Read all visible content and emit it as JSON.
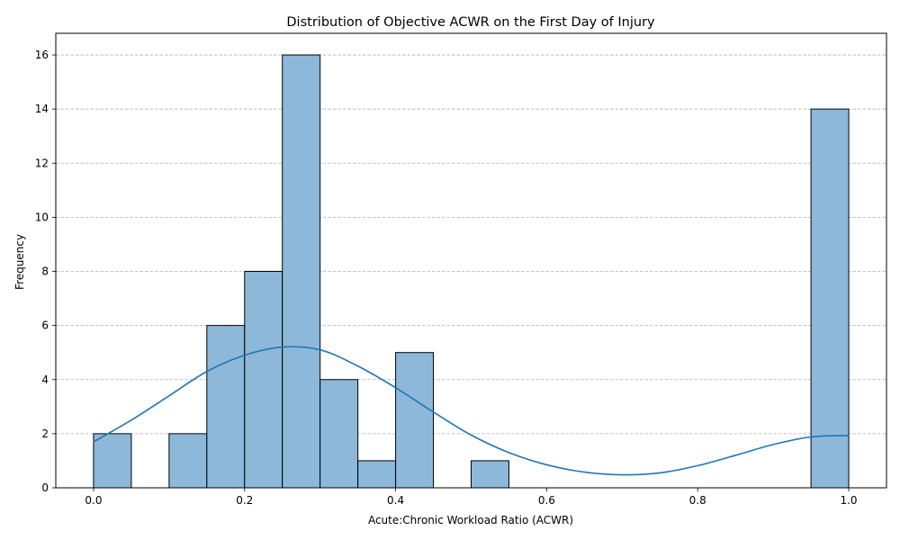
{
  "chart_data": {
    "type": "bar",
    "title": "Distribution of Objective ACWR on the First Day of Injury",
    "xlabel": "Acute:Chronic Workload Ratio (ACWR)",
    "ylabel": "Frequency",
    "xlim": [
      -0.05,
      1.05
    ],
    "ylim": [
      0,
      16.8
    ],
    "xticks": [
      0.0,
      0.2,
      0.4,
      0.6,
      0.8,
      1.0
    ],
    "xtick_labels": [
      "0.0",
      "0.2",
      "0.4",
      "0.6",
      "0.8",
      "1.0"
    ],
    "yticks": [
      0,
      2,
      4,
      6,
      8,
      10,
      12,
      14,
      16
    ],
    "ytick_labels": [
      "0",
      "2",
      "4",
      "6",
      "8",
      "10",
      "12",
      "14",
      "16"
    ],
    "grid": "y-dashed",
    "bins": [
      {
        "x0": 0.0,
        "x1": 0.05,
        "count": 2
      },
      {
        "x0": 0.05,
        "x1": 0.1,
        "count": 0
      },
      {
        "x0": 0.1,
        "x1": 0.15,
        "count": 2
      },
      {
        "x0": 0.15,
        "x1": 0.2,
        "count": 6
      },
      {
        "x0": 0.2,
        "x1": 0.25,
        "count": 8
      },
      {
        "x0": 0.25,
        "x1": 0.3,
        "count": 16
      },
      {
        "x0": 0.3,
        "x1": 0.35,
        "count": 4
      },
      {
        "x0": 0.35,
        "x1": 0.4,
        "count": 1
      },
      {
        "x0": 0.4,
        "x1": 0.45,
        "count": 5
      },
      {
        "x0": 0.45,
        "x1": 0.5,
        "count": 0
      },
      {
        "x0": 0.5,
        "x1": 0.55,
        "count": 1
      },
      {
        "x0": 0.55,
        "x1": 0.6,
        "count": 0
      },
      {
        "x0": 0.6,
        "x1": 0.65,
        "count": 0
      },
      {
        "x0": 0.65,
        "x1": 0.7,
        "count": 0
      },
      {
        "x0": 0.7,
        "x1": 0.75,
        "count": 0
      },
      {
        "x0": 0.75,
        "x1": 0.8,
        "count": 0
      },
      {
        "x0": 0.8,
        "x1": 0.85,
        "count": 0
      },
      {
        "x0": 0.85,
        "x1": 0.9,
        "count": 0
      },
      {
        "x0": 0.9,
        "x1": 0.95,
        "count": 0
      },
      {
        "x0": 0.95,
        "x1": 1.0,
        "count": 14
      }
    ],
    "kde": {
      "x": [
        0.0,
        0.05,
        0.1,
        0.15,
        0.2,
        0.25,
        0.3,
        0.35,
        0.4,
        0.45,
        0.5,
        0.55,
        0.6,
        0.65,
        0.7,
        0.75,
        0.8,
        0.85,
        0.9,
        0.95,
        1.0
      ],
      "y": [
        1.7,
        2.5,
        3.4,
        4.3,
        4.9,
        5.2,
        5.1,
        4.5,
        3.7,
        2.8,
        1.95,
        1.3,
        0.85,
        0.58,
        0.48,
        0.55,
        0.82,
        1.2,
        1.6,
        1.88,
        1.93
      ]
    },
    "colors": {
      "bar_fill": "#8db8d9",
      "bar_edge": "#000000",
      "kde_line": "#1f77b4",
      "grid": "#b0b0b0"
    }
  }
}
